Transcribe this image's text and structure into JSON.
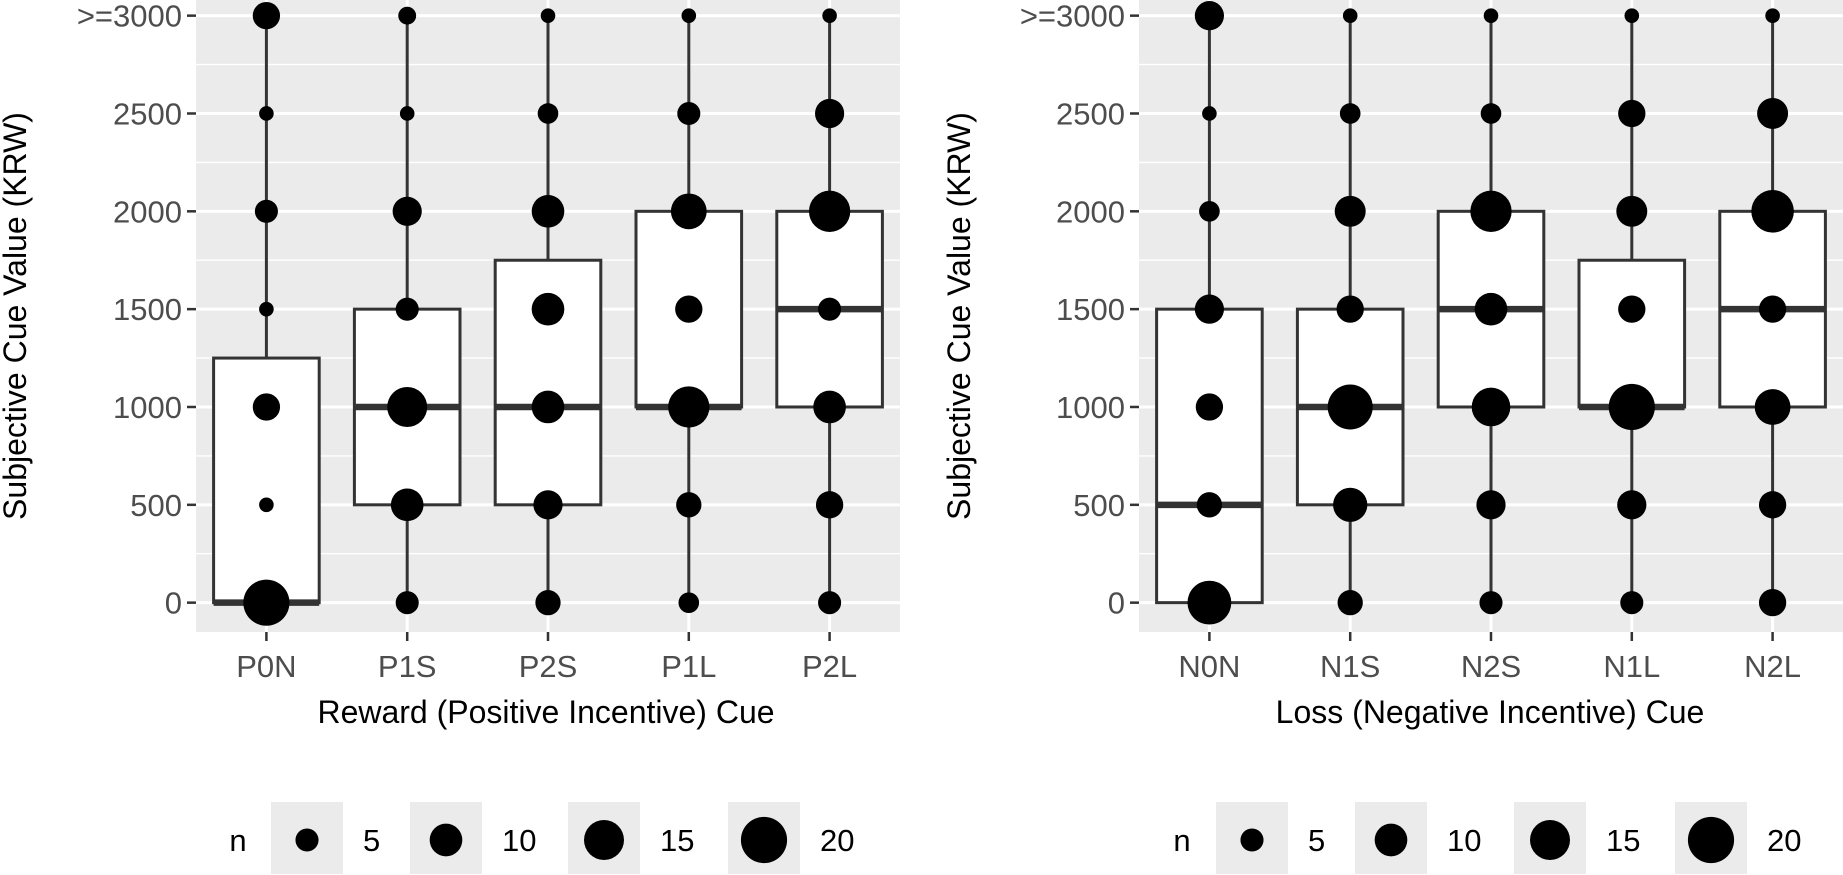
{
  "chart_data": [
    {
      "type": "boxplot",
      "xlabel": "Reward (Positive Incentive) Cue",
      "ylabel": "Subjective Cue Value (KRW)",
      "ylim": [
        -150,
        3080
      ],
      "yticks": [
        0,
        500,
        1000,
        1500,
        2000,
        2500,
        3000
      ],
      "ytick_labels": [
        "0",
        "500",
        "1000",
        "1500",
        "2000",
        "2500",
        ">=3000"
      ],
      "categories": [
        "P0N",
        "P1S",
        "P2S",
        "P1L",
        "P2L"
      ],
      "boxes": [
        {
          "q1": 0,
          "median": 0,
          "q3": 1250,
          "whisker_low": 0,
          "whisker_high": 3000
        },
        {
          "q1": 500,
          "median": 1000,
          "q3": 1500,
          "whisker_low": 0,
          "whisker_high": 3000
        },
        {
          "q1": 500,
          "median": 1000,
          "q3": 1750,
          "whisker_low": 0,
          "whisker_high": 3000
        },
        {
          "q1": 1000,
          "median": 1000,
          "q3": 2000,
          "whisker_low": 0,
          "whisker_high": 3000
        },
        {
          "q1": 1000,
          "median": 1500,
          "q3": 2000,
          "whisker_low": 0,
          "whisker_high": 3000
        }
      ],
      "points": [
        [
          [
            0,
            20
          ],
          [
            500,
            2
          ],
          [
            1000,
            7
          ],
          [
            1500,
            2
          ],
          [
            2000,
            5
          ],
          [
            2500,
            2
          ],
          [
            3000,
            7
          ]
        ],
        [
          [
            0,
            5
          ],
          [
            500,
            10
          ],
          [
            1000,
            15
          ],
          [
            1500,
            5
          ],
          [
            2000,
            8
          ],
          [
            2500,
            2
          ],
          [
            3000,
            3
          ]
        ],
        [
          [
            0,
            6
          ],
          [
            500,
            8
          ],
          [
            1000,
            10
          ],
          [
            1500,
            10
          ],
          [
            2000,
            10
          ],
          [
            2500,
            4
          ],
          [
            3000,
            2
          ]
        ],
        [
          [
            0,
            4
          ],
          [
            500,
            6
          ],
          [
            1000,
            16
          ],
          [
            1500,
            7
          ],
          [
            2000,
            12
          ],
          [
            2500,
            5
          ],
          [
            3000,
            2
          ]
        ],
        [
          [
            0,
            5
          ],
          [
            500,
            7
          ],
          [
            1000,
            10
          ],
          [
            1500,
            5
          ],
          [
            2000,
            16
          ],
          [
            2500,
            8
          ],
          [
            3000,
            2
          ]
        ]
      ]
    },
    {
      "type": "boxplot",
      "xlabel": "Loss (Negative Incentive) Cue",
      "ylabel": "Subjective Cue Value (KRW)",
      "ylim": [
        -150,
        3080
      ],
      "yticks": [
        0,
        500,
        1000,
        1500,
        2000,
        2500,
        3000
      ],
      "ytick_labels": [
        "0",
        "500",
        "1000",
        "1500",
        "2000",
        "2500",
        ">=3000"
      ],
      "categories": [
        "N0N",
        "N1S",
        "N2S",
        "N1L",
        "N2L"
      ],
      "boxes": [
        {
          "q1": 0,
          "median": 500,
          "q3": 1500,
          "whisker_low": 0,
          "whisker_high": 3000
        },
        {
          "q1": 500,
          "median": 1000,
          "q3": 1500,
          "whisker_low": 0,
          "whisker_high": 3000
        },
        {
          "q1": 1000,
          "median": 1500,
          "q3": 2000,
          "whisker_low": 0,
          "whisker_high": 3000
        },
        {
          "q1": 1000,
          "median": 1000,
          "q3": 1750,
          "whisker_low": 0,
          "whisker_high": 3000
        },
        {
          "q1": 1000,
          "median": 1500,
          "q3": 2000,
          "whisker_low": 0,
          "whisker_high": 3000
        }
      ],
      "points": [
        [
          [
            0,
            18
          ],
          [
            500,
            6
          ],
          [
            1000,
            7
          ],
          [
            1500,
            8
          ],
          [
            2000,
            4
          ],
          [
            2500,
            2
          ],
          [
            3000,
            8
          ]
        ],
        [
          [
            0,
            6
          ],
          [
            500,
            11
          ],
          [
            1000,
            19
          ],
          [
            1500,
            7
          ],
          [
            2000,
            9
          ],
          [
            2500,
            4
          ],
          [
            3000,
            2
          ]
        ],
        [
          [
            0,
            5
          ],
          [
            500,
            8
          ],
          [
            1000,
            14
          ],
          [
            1500,
            10
          ],
          [
            2000,
            16
          ],
          [
            2500,
            4
          ],
          [
            3000,
            2
          ]
        ],
        [
          [
            0,
            5
          ],
          [
            500,
            8
          ],
          [
            1000,
            20
          ],
          [
            1500,
            7
          ],
          [
            2000,
            9
          ],
          [
            2500,
            7
          ],
          [
            3000,
            2
          ]
        ],
        [
          [
            0,
            7
          ],
          [
            500,
            7
          ],
          [
            1000,
            12
          ],
          [
            1500,
            7
          ],
          [
            2000,
            17
          ],
          [
            2500,
            9
          ],
          [
            3000,
            2
          ]
        ]
      ]
    }
  ],
  "legend": {
    "title": "n",
    "items": [
      {
        "value": 5,
        "label": "5"
      },
      {
        "value": 10,
        "label": "10"
      },
      {
        "value": 15,
        "label": "15"
      },
      {
        "value": 20,
        "label": "20"
      }
    ]
  },
  "colors": {
    "panel_bg": "#ebebeb",
    "grid": "#ffffff",
    "box_line": "#333333",
    "point": "#000000"
  }
}
